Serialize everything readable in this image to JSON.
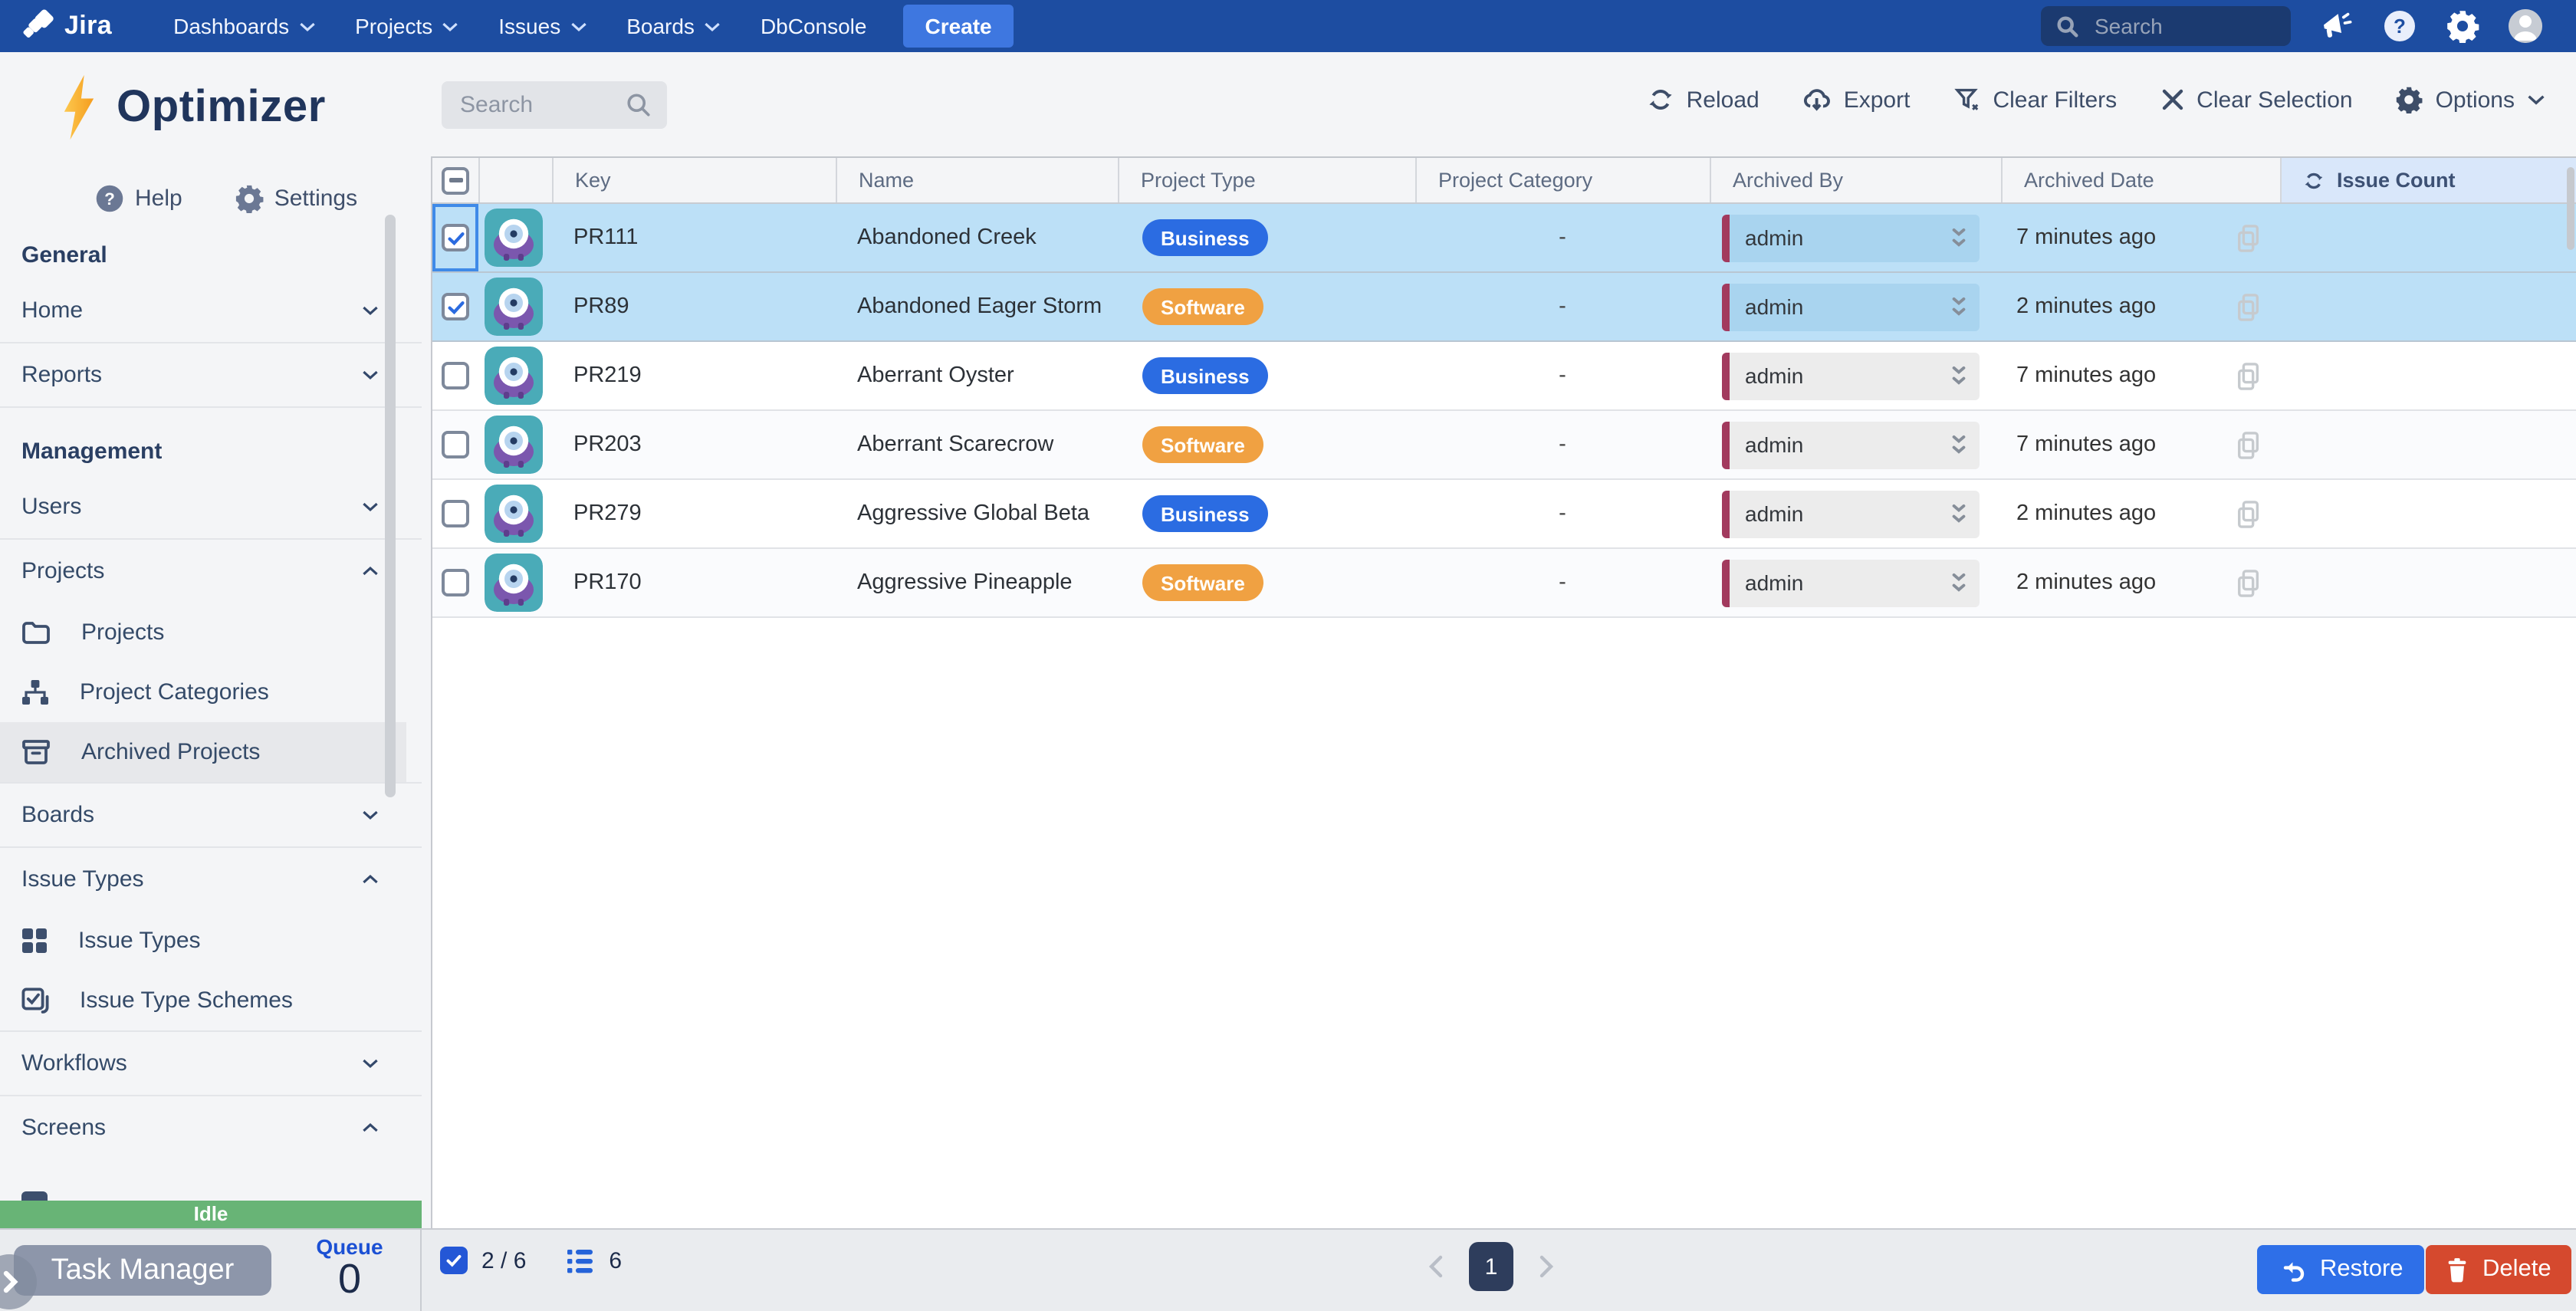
{
  "nav": {
    "brand": "Jira",
    "items": [
      {
        "label": "Dashboards",
        "chevron": true
      },
      {
        "label": "Projects",
        "chevron": true
      },
      {
        "label": "Issues",
        "chevron": true
      },
      {
        "label": "Boards",
        "chevron": true
      },
      {
        "label": "DbConsole",
        "chevron": false
      }
    ],
    "create_label": "Create",
    "search_placeholder": "Search"
  },
  "sidebar": {
    "logo_text": "Optimizer",
    "help_label": "Help",
    "settings_label": "Settings",
    "items": [
      {
        "type": "heading",
        "label": "General"
      },
      {
        "type": "item",
        "label": "Home",
        "chevron": "down"
      },
      {
        "type": "sep"
      },
      {
        "type": "item",
        "label": "Reports",
        "chevron": "down"
      },
      {
        "type": "sep"
      },
      {
        "type": "heading",
        "label": "Management"
      },
      {
        "type": "item",
        "label": "Users",
        "chevron": "down"
      },
      {
        "type": "sep"
      },
      {
        "type": "item",
        "label": "Projects",
        "chevron": "up"
      },
      {
        "type": "subitem",
        "label": "Projects",
        "icon": "folder"
      },
      {
        "type": "subitem",
        "label": "Project Categories",
        "icon": "sitemap"
      },
      {
        "type": "subitem",
        "label": "Archived Projects",
        "icon": "archive",
        "active": true
      },
      {
        "type": "sep"
      },
      {
        "type": "item",
        "label": "Boards",
        "chevron": "down"
      },
      {
        "type": "sep"
      },
      {
        "type": "item",
        "label": "Issue Types",
        "chevron": "up"
      },
      {
        "type": "subitem",
        "label": "Issue Types",
        "icon": "grid"
      },
      {
        "type": "subitem",
        "label": "Issue Type Schemes",
        "icon": "check-square"
      },
      {
        "type": "sep"
      },
      {
        "type": "item",
        "label": "Workflows",
        "chevron": "down"
      },
      {
        "type": "sep"
      },
      {
        "type": "item",
        "label": "Screens",
        "chevron": "up"
      }
    ]
  },
  "status": {
    "idle_label": "Idle",
    "task_manager_label": "Task Manager",
    "queue_label": "Queue",
    "queue_count": "0"
  },
  "toolbar": {
    "search_placeholder": "Search",
    "reload_label": "Reload",
    "export_label": "Export",
    "clear_filters_label": "Clear Filters",
    "clear_selection_label": "Clear Selection",
    "options_label": "Options"
  },
  "table": {
    "columns": [
      "Key",
      "Name",
      "Project Type",
      "Project Category",
      "Archived By",
      "Archived Date",
      "Issue Count"
    ],
    "rows": [
      {
        "key": "PR111",
        "name": "Abandoned Creek",
        "type": "Business",
        "category": "-",
        "archived_by": "admin",
        "archived_date": "7 minutes ago",
        "selected": true,
        "focused": true
      },
      {
        "key": "PR89",
        "name": "Abandoned Eager Storm",
        "type": "Software",
        "category": "-",
        "archived_by": "admin",
        "archived_date": "2 minutes ago",
        "selected": true
      },
      {
        "key": "PR219",
        "name": "Aberrant Oyster",
        "type": "Business",
        "category": "-",
        "archived_by": "admin",
        "archived_date": "7 minutes ago"
      },
      {
        "key": "PR203",
        "name": "Aberrant Scarecrow",
        "type": "Software",
        "category": "-",
        "archived_by": "admin",
        "archived_date": "7 minutes ago"
      },
      {
        "key": "PR279",
        "name": "Aggressive Global Beta",
        "type": "Business",
        "category": "-",
        "archived_by": "admin",
        "archived_date": "2 minutes ago"
      },
      {
        "key": "PR170",
        "name": "Aggressive Pineapple",
        "type": "Software",
        "category": "-",
        "archived_by": "admin",
        "archived_date": "2 minutes ago"
      }
    ]
  },
  "footer": {
    "selected_ratio": "2 / 6",
    "shown_count": "6",
    "page": "1",
    "restore_label": "Restore",
    "delete_label": "Delete"
  },
  "colors": {
    "nav_navy": "#1d4da1",
    "business": "#2b6ce2",
    "software": "#f0a142",
    "selected_row": "#bce0f7",
    "archived_by_bar": "#a23a5e",
    "idle_green": "#68b476",
    "restore_blue": "#2e6fe8",
    "delete_red": "#d5492e",
    "issue_count_highlight": "#d9e7fa"
  }
}
